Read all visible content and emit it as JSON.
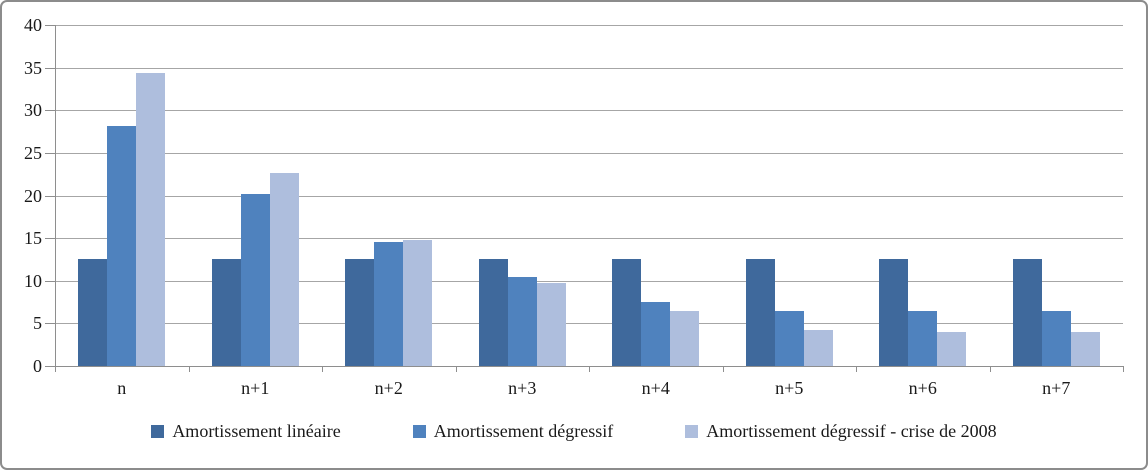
{
  "chart_data": {
    "type": "bar",
    "title": "",
    "xlabel": "",
    "ylabel": "",
    "categories": [
      "n",
      "n+1",
      "n+2",
      "n+3",
      "n+4",
      "n+5",
      "n+6",
      "n+7"
    ],
    "series": [
      {
        "name": "Amortissement linéaire",
        "color": "#3F699C",
        "values": [
          12.5,
          12.5,
          12.5,
          12.5,
          12.5,
          12.5,
          12.5,
          12.5
        ]
      },
      {
        "name": "Amortissement dégressif",
        "color": "#4F82BE",
        "values": [
          28.1,
          20.2,
          14.5,
          10.4,
          7.5,
          6.4,
          6.4,
          6.4
        ]
      },
      {
        "name": "Amortissement dégressif - crise de 2008",
        "color": "#AEBEDD",
        "values": [
          34.4,
          22.6,
          14.8,
          9.7,
          6.4,
          4.2,
          4.0,
          4.0
        ]
      }
    ],
    "ylim": [
      0,
      40
    ],
    "yticks": [
      0,
      5,
      10,
      15,
      20,
      25,
      30,
      35,
      40
    ],
    "grid": true,
    "legend_position": "bottom"
  },
  "colors": {
    "gridline": "#A6A6A6",
    "axis": "#8E8E8E",
    "frame_border": "#8C8C8C",
    "text": "#1A1A1A",
    "background": "#FFFFFF"
  }
}
